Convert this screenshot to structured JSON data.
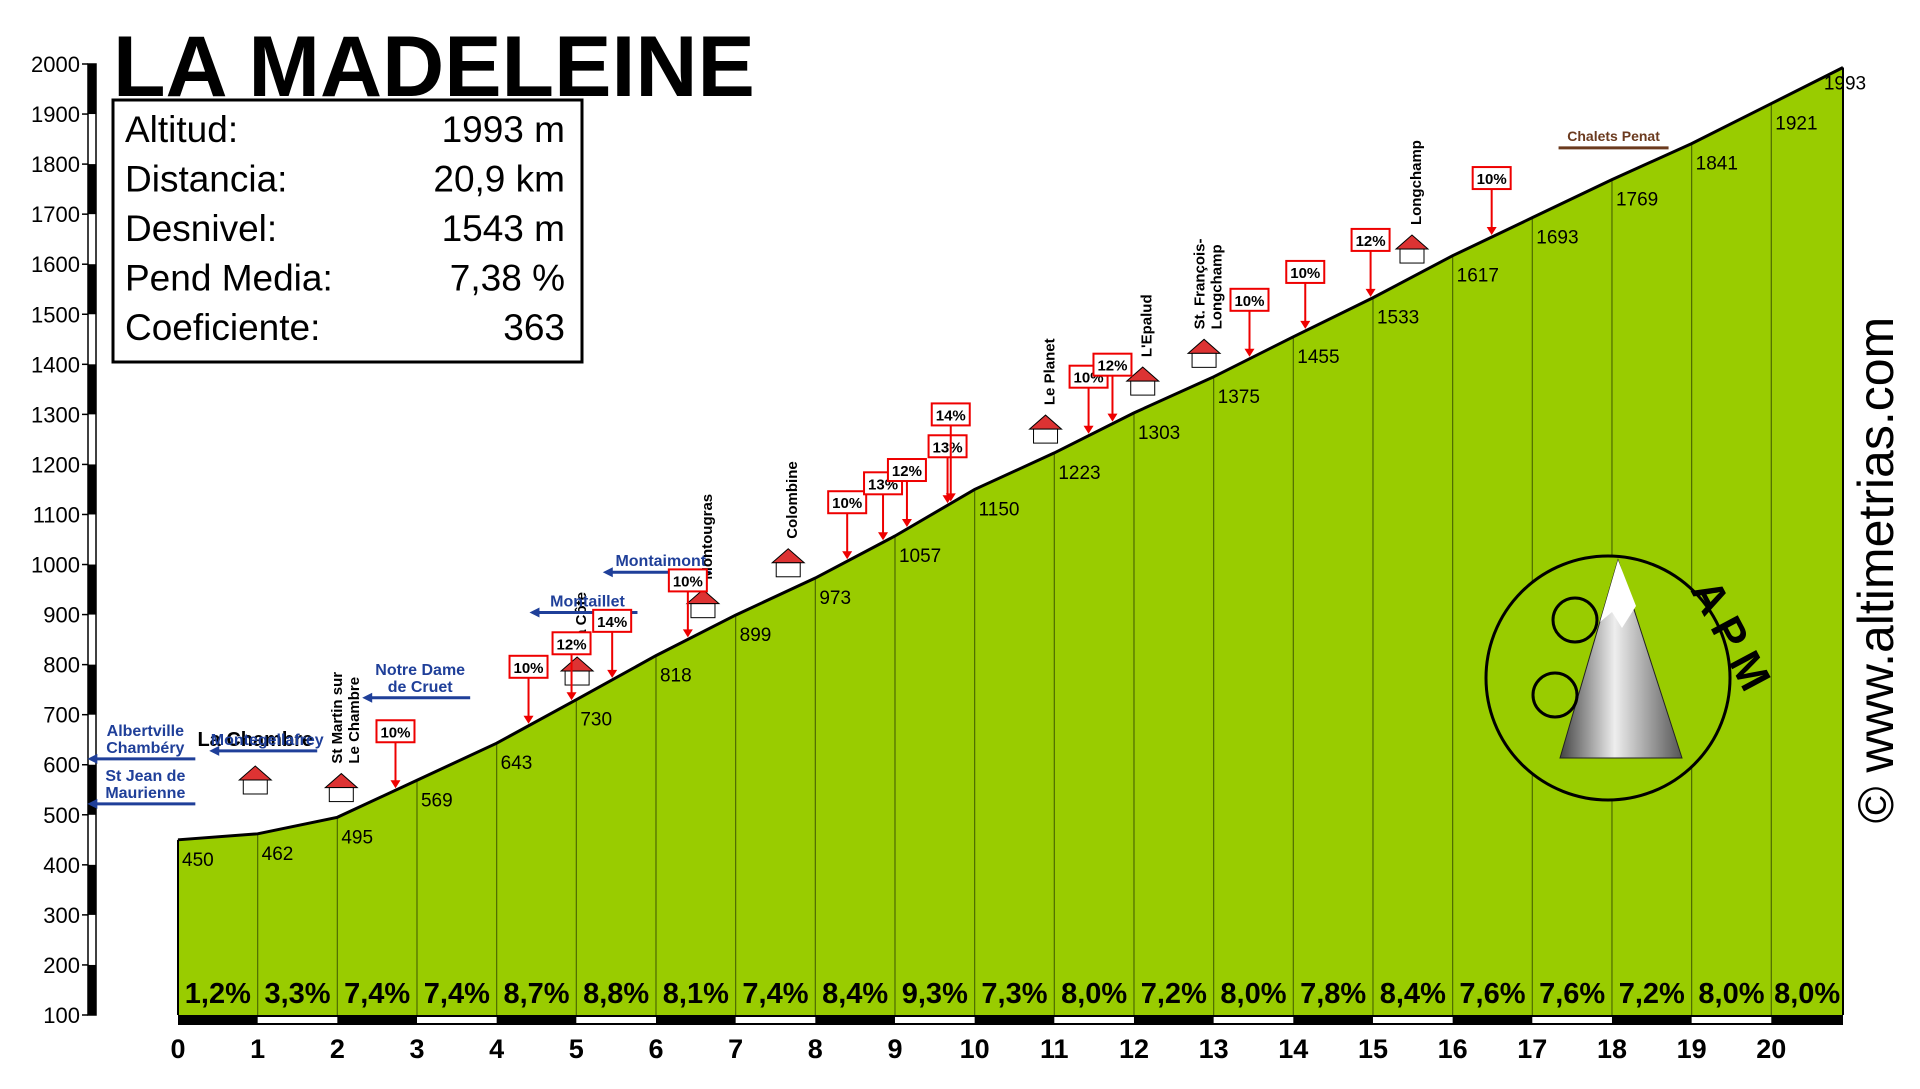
{
  "chart_data": {
    "type": "elevation-profile",
    "title": "LA MADELEINE",
    "info_box": [
      {
        "label": "Altitud:",
        "value": "1993 m"
      },
      {
        "label": "Distancia:",
        "value": "20,9 km"
      },
      {
        "label": "Desnivel:",
        "value": "1543 m"
      },
      {
        "label": "Pend Media:",
        "value": "7,38 %"
      },
      {
        "label": "Coeficiente:",
        "value": "363"
      }
    ],
    "x": [
      0,
      1,
      2,
      3,
      4,
      5,
      6,
      7,
      8,
      9,
      10,
      11,
      12,
      13,
      14,
      15,
      16,
      17,
      18,
      19,
      20,
      20.9
    ],
    "values": [
      450,
      462,
      495,
      569,
      643,
      730,
      818,
      899,
      973,
      1057,
      1150,
      1223,
      1303,
      1375,
      1455,
      1533,
      1617,
      1693,
      1769,
      1841,
      1921,
      1993
    ],
    "gradient_labels": [
      "1,2%",
      "3,3%",
      "7,4%",
      "7,4%",
      "8,7%",
      "8,8%",
      "8,1%",
      "7,4%",
      "8,4%",
      "9,3%",
      "7,3%",
      "8,0%",
      "7,2%",
      "8,0%",
      "7,8%",
      "8,4%",
      "7,6%",
      "7,6%",
      "7,2%",
      "8,0%",
      "8,0%"
    ],
    "color": "#99cc00",
    "xlim": [
      0,
      20.9
    ],
    "xticks": [
      0,
      1,
      2,
      3,
      4,
      5,
      6,
      7,
      8,
      9,
      10,
      11,
      12,
      13,
      14,
      15,
      16,
      17,
      18,
      19,
      20
    ],
    "ylim": [
      100,
      2000
    ],
    "yticks": [
      100,
      200,
      300,
      400,
      500,
      600,
      700,
      800,
      900,
      1000,
      1100,
      1200,
      1300,
      1400,
      1500,
      1600,
      1700,
      1800,
      1900,
      2000
    ],
    "flags": [
      {
        "x": 2.73,
        "text": "10%"
      },
      {
        "x": 4.4,
        "text": "10%"
      },
      {
        "x": 4.94,
        "text": "12%"
      },
      {
        "x": 5.45,
        "text": "14%"
      },
      {
        "x": 6.4,
        "text": "10%"
      },
      {
        "x": 8.4,
        "text": "10%"
      },
      {
        "x": 8.85,
        "text": "13%"
      },
      {
        "x": 9.15,
        "text": "12%"
      },
      {
        "x": 9.66,
        "text": "13%"
      },
      {
        "x": 9.7,
        "text": "14%"
      },
      {
        "x": 11.43,
        "text": "10%"
      },
      {
        "x": 11.73,
        "text": "12%"
      },
      {
        "x": 13.45,
        "text": "10%"
      },
      {
        "x": 14.15,
        "text": "10%"
      },
      {
        "x": 14.97,
        "text": "12%"
      },
      {
        "x": 16.49,
        "text": "10%"
      }
    ],
    "places": [
      {
        "x": -0.41,
        "style": "sign",
        "text": [
          "Albertville",
          "Chambéry"
        ]
      },
      {
        "x": -0.41,
        "style": "sign",
        "text": [
          "St Jean de",
          "Maurienne"
        ]
      },
      {
        "x": 0.97,
        "style": "town",
        "text": [
          "La Chambre"
        ]
      },
      {
        "x": 1.12,
        "style": "sign",
        "text": [
          "Montegellafrey"
        ]
      },
      {
        "x": 2.1,
        "style": "vertical",
        "text": [
          "St Martin sur",
          "Le Chambre"
        ]
      },
      {
        "x": 3.04,
        "style": "sign",
        "text": [
          "Notre Dame",
          "de Cruet"
        ]
      },
      {
        "x": 5.06,
        "style": "vertical",
        "text": [
          "La Côte"
        ]
      },
      {
        "x": 5.14,
        "style": "sign",
        "text": [
          "Montaillet"
        ]
      },
      {
        "x": 6.06,
        "style": "sign",
        "text": [
          "Montaimont"
        ]
      },
      {
        "x": 6.64,
        "style": "vertical",
        "text": [
          "Montougras"
        ]
      },
      {
        "x": 7.71,
        "style": "vertical",
        "text": [
          "Colombine"
        ]
      },
      {
        "x": 10.94,
        "style": "vertical",
        "text": [
          "Le Planet"
        ]
      },
      {
        "x": 12.16,
        "style": "vertical",
        "text": [
          "L'Epalud"
        ]
      },
      {
        "x": 12.93,
        "style": "vertical",
        "text": [
          "St. François-",
          "Longchamp"
        ]
      },
      {
        "x": 15.54,
        "style": "vertical",
        "text": [
          "Longchamp"
        ]
      },
      {
        "x": 18.02,
        "style": "brown",
        "text": [
          "Chalets Penat"
        ]
      }
    ],
    "logo": "APM",
    "watermark": "© www.altimetrias.com"
  }
}
